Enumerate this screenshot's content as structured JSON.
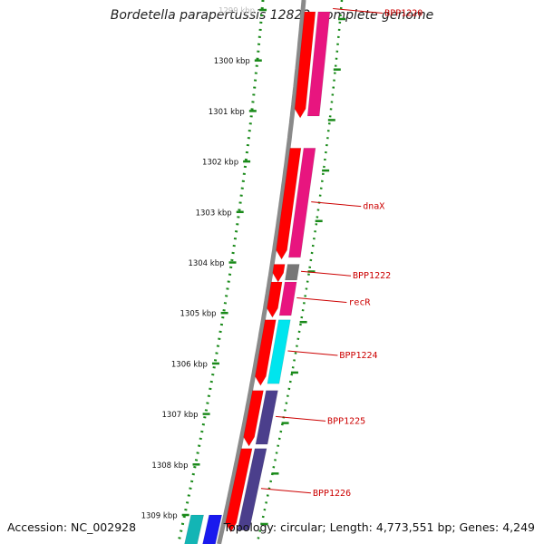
{
  "title": "Bordetella parapertussis 12822, complete genome",
  "accession": "Accession: NC_002928",
  "summary": "Topology: circular; Length: 4,773,551 bp; Genes: 4,249",
  "ruler": [
    {
      "kb": 1299,
      "label": "1299 kbp",
      "faded": true
    },
    {
      "kb": 1300,
      "label": "1300 kbp"
    },
    {
      "kb": 1301,
      "label": "1301 kbp"
    },
    {
      "kb": 1302,
      "label": "1302 kbp"
    },
    {
      "kb": 1303,
      "label": "1303 kbp"
    },
    {
      "kb": 1304,
      "label": "1304 kbp"
    },
    {
      "kb": 1305,
      "label": "1305 kbp"
    },
    {
      "kb": 1306,
      "label": "1306 kbp"
    },
    {
      "kb": 1307,
      "label": "1307 kbp"
    },
    {
      "kb": 1308,
      "label": "1308 kbp"
    },
    {
      "kb": 1309,
      "label": "1309 kbp"
    }
  ],
  "features": [
    {
      "name": "BPP1220",
      "start_kb": 1299.0,
      "end_kb": 1301.1,
      "color": "#e8157f",
      "cds_color": "#ff0000"
    },
    {
      "name": "dnaX",
      "start_kb": 1301.7,
      "end_kb": 1303.9,
      "color": "#e8157f",
      "cds_color": "#ff0000"
    },
    {
      "name": "BPP1222",
      "start_kb": 1304.0,
      "end_kb": 1304.35,
      "color": "#777777",
      "cds_color": "#ff0000"
    },
    {
      "name": "recR",
      "start_kb": 1304.35,
      "end_kb": 1305.05,
      "color": "#e8157f",
      "cds_color": "#ff0000"
    },
    {
      "name": "BPP1224",
      "start_kb": 1305.1,
      "end_kb": 1306.4,
      "color": "#00e5ee",
      "cds_color": "#ff0000"
    },
    {
      "name": "BPP1225",
      "start_kb": 1306.5,
      "end_kb": 1307.6,
      "color": "#4b3f8c",
      "cds_color": "#ff0000"
    },
    {
      "name": "BPP1226",
      "start_kb": 1307.65,
      "end_kb": 1309.3,
      "color": "#4b3f8c",
      "cds_color": "#ff0000"
    }
  ],
  "extra_blocks": [
    {
      "start_kb": 1309.0,
      "end_kb": 1309.6,
      "color": "#13b5b5"
    },
    {
      "start_kb": 1309.0,
      "end_kb": 1309.6,
      "color": "#1a1aee"
    }
  ]
}
